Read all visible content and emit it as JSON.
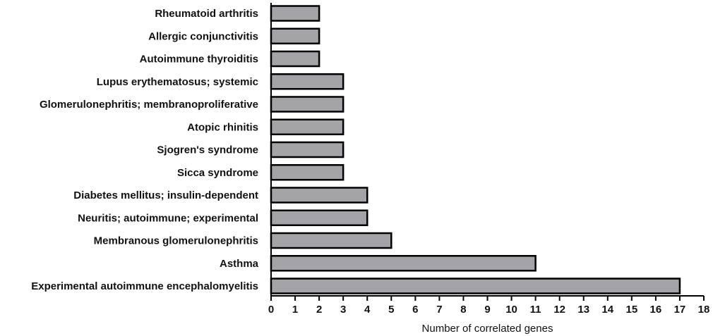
{
  "chart_data": {
    "type": "bar",
    "orientation": "horizontal",
    "categories": [
      "Rheumatoid arthritis",
      "Allergic conjunctivitis",
      "Autoimmune thyroiditis",
      "Lupus erythematosus; systemic",
      "Glomerulonephritis; membranoproliferative",
      "Atopic rhinitis",
      "Sjogren's syndrome",
      "Sicca syndrome",
      "Diabetes mellitus; insulin-dependent",
      "Neuritis; autoimmune; experimental",
      "Membranous glomerulonephritis",
      "Asthma",
      "Experimental autoimmune encephalomyelitis"
    ],
    "values": [
      2,
      2,
      2,
      3,
      3,
      3,
      3,
      3,
      4,
      4,
      5,
      11,
      17
    ],
    "title": "",
    "xlabel": "Number of correlated genes",
    "ylabel": "",
    "xlim": [
      0,
      18
    ],
    "xticks": [
      "0",
      "1",
      "2",
      "3",
      "4",
      "5",
      "6",
      "7",
      "8",
      "9",
      "10",
      "11",
      "12",
      "13",
      "14",
      "15",
      "16",
      "17",
      "18"
    ],
    "grid": false,
    "legend": "none",
    "colors": {
      "bar_fill": "#a4a4a8",
      "bar_stroke": "#000000",
      "axis": "#000000",
      "text": "#111111"
    }
  }
}
